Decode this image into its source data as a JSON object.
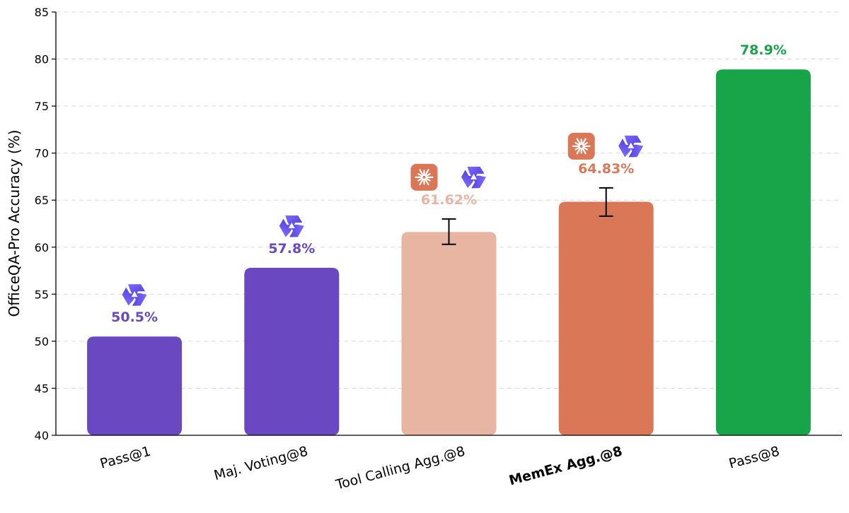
{
  "chart_data": {
    "type": "bar",
    "title": "",
    "xlabel": "",
    "ylabel": "OfficeQA-Pro Accuracy (%)",
    "ylim": [
      40,
      85
    ],
    "yticks": [
      40,
      45,
      50,
      55,
      60,
      65,
      70,
      75,
      80,
      85
    ],
    "grid": "horizontal dashed",
    "categories": [
      "Pass@1",
      "Maj. Voting@8",
      "Tool Calling Agg.@8",
      "MemEx Agg.@8",
      "Pass@8"
    ],
    "values": [
      50.5,
      57.8,
      61.62,
      64.83,
      78.9
    ],
    "value_labels": [
      "50.5%",
      "57.8%",
      "61.62%",
      "64.83%",
      "78.9%"
    ],
    "error_bars": [
      null,
      null,
      [
        60.3,
        63.0
      ],
      [
        63.3,
        66.3
      ],
      null
    ],
    "bold_categories": [
      "MemEx Agg.@8"
    ],
    "colors": [
      "#6a48c1",
      "#6a48c1",
      "#e8b5a2",
      "#d97757",
      "#18a54a"
    ],
    "label_colors": [
      "#6a48c1",
      "#6a48c1",
      "#e8b5a2",
      "#d97757",
      "#18a54a"
    ],
    "bar_icons": [
      [
        "qwen-logo-icon"
      ],
      [
        "qwen-logo-icon"
      ],
      [
        "claude-logo-icon",
        "qwen-logo-icon"
      ],
      [
        "claude-logo-icon",
        "qwen-logo-icon"
      ],
      []
    ]
  }
}
